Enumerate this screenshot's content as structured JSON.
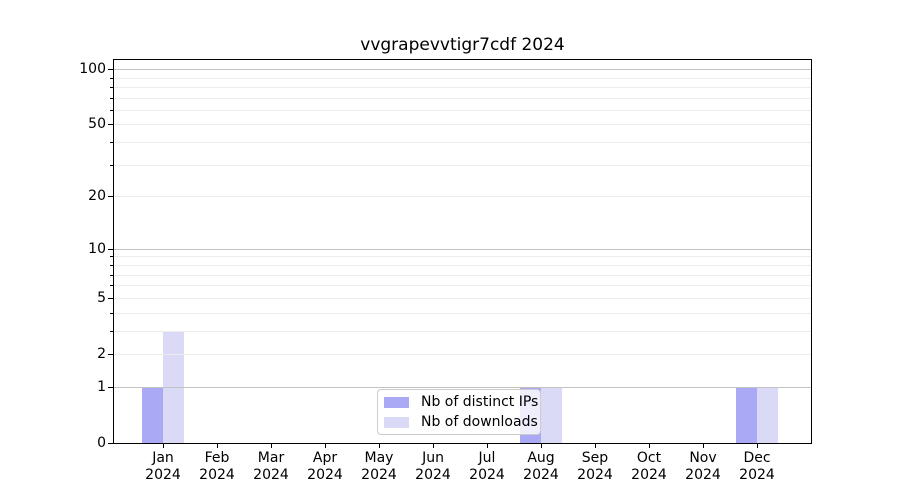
{
  "chart_data": {
    "type": "bar",
    "title": "vvgrapevvtigr7cdf 2024",
    "categories": [
      "Jan",
      "Feb",
      "Mar",
      "Apr",
      "May",
      "Jun",
      "Jul",
      "Aug",
      "Sep",
      "Oct",
      "Nov",
      "Dec"
    ],
    "category_year": "2024",
    "series": [
      {
        "name": "Nb of distinct IPs",
        "color": "#a9a9f5",
        "values": [
          1,
          0,
          0,
          0,
          0,
          0,
          0,
          1,
          0,
          0,
          0,
          1
        ]
      },
      {
        "name": "Nb of downloads",
        "color": "#dadaf7",
        "values": [
          3,
          0,
          0,
          0,
          0,
          0,
          0,
          1,
          0,
          0,
          0,
          1
        ]
      }
    ],
    "y_scale": "log10(1+x)",
    "ylim": [
      0,
      112
    ],
    "y_labeled_ticks": [
      0,
      1,
      2,
      5,
      10,
      20,
      50,
      100
    ],
    "y_major_grid": [
      1,
      10,
      100
    ],
    "y_minor_grid": [
      2,
      3,
      4,
      5,
      6,
      7,
      8,
      9,
      20,
      30,
      40,
      50,
      60,
      70,
      80,
      90
    ],
    "grid": true,
    "legend_position": "lower center"
  },
  "colors": {
    "bar_distinct_ips": "#a9a9f5",
    "bar_downloads": "#dadaf7",
    "major_grid": "#c3c3c3",
    "minor_grid": "#ececec",
    "spine": "#000000",
    "legend_border": "#cccccc",
    "background": "#ffffff"
  }
}
